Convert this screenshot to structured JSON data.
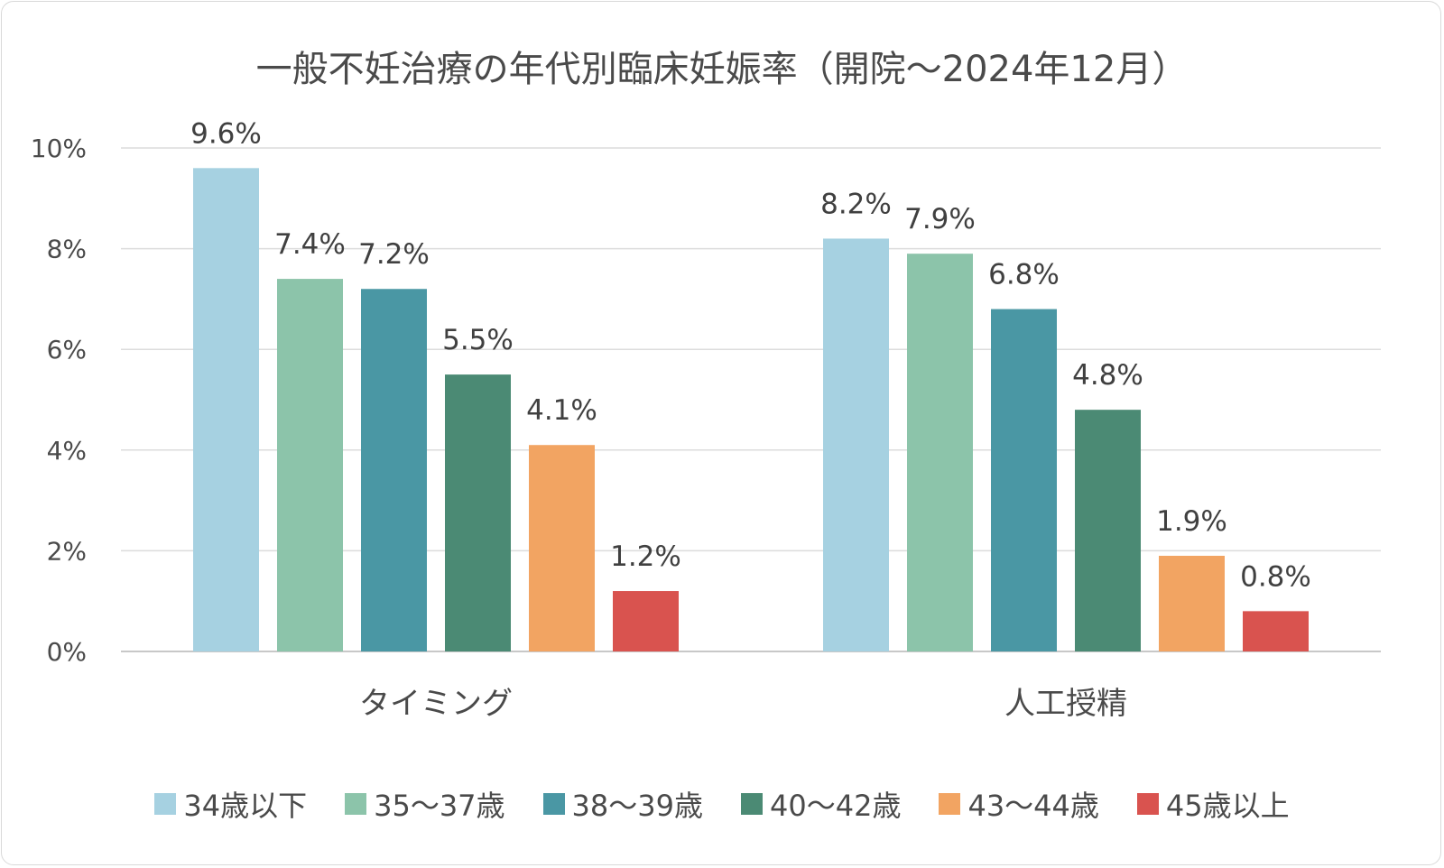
{
  "chart_data": {
    "type": "bar",
    "title": "一般不妊治療の年代別臨床妊娠率（開院～2024年12月）",
    "categories": [
      "タイミング",
      "人工授精"
    ],
    "yticks": [
      "0%",
      "2%",
      "4%",
      "6%",
      "8%",
      "10%"
    ],
    "ylim": [
      0,
      10
    ],
    "grid": true,
    "legend_position": "bottom",
    "series": [
      {
        "name": "34歳以下",
        "color": "#a6d1e1",
        "values": [
          9.6,
          8.2
        ],
        "labels": [
          "9.6%",
          "8.2%"
        ]
      },
      {
        "name": "35～37歳",
        "color": "#8cc4aa",
        "values": [
          7.4,
          7.9
        ],
        "labels": [
          "7.4%",
          "7.9%"
        ]
      },
      {
        "name": "38～39歳",
        "color": "#4a97a4",
        "values": [
          7.2,
          6.8
        ],
        "labels": [
          "7.2%",
          "6.8%"
        ]
      },
      {
        "name": "40～42歳",
        "color": "#4b8a74",
        "values": [
          5.5,
          4.8
        ],
        "labels": [
          "5.5%",
          "4.8%"
        ]
      },
      {
        "name": "43～44歳",
        "color": "#f2a462",
        "values": [
          4.1,
          1.9
        ],
        "labels": [
          "4.1%",
          "1.9%"
        ]
      },
      {
        "name": "45歳以上",
        "color": "#d9534f",
        "values": [
          1.2,
          0.8
        ],
        "labels": [
          "1.2%",
          "0.8%"
        ]
      }
    ]
  }
}
